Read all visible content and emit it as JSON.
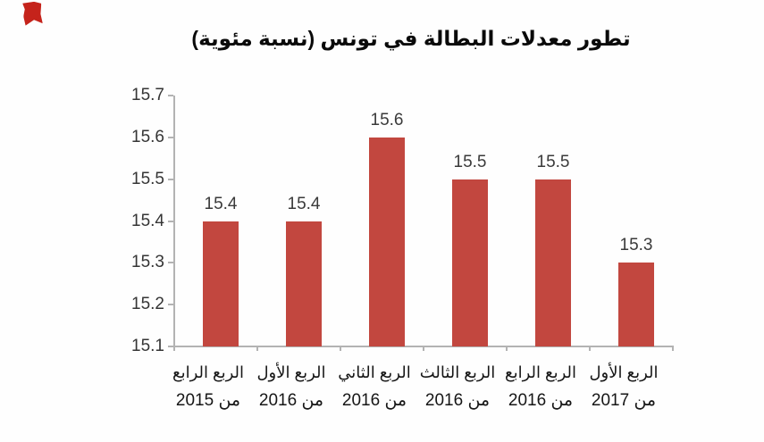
{
  "page": {
    "background": "#fefefe",
    "logo_color": "#c5231b"
  },
  "chart_data": {
    "type": "bar",
    "title": "تطور معدلات البطالة في تونس (نسبة مئوية)",
    "direction": "rtl",
    "grid": false,
    "legend": "none",
    "bar_color": "#c2473f",
    "axis_color": "#b3b3b3",
    "ylim": [
      15.1,
      15.7
    ],
    "y_tick_step": 0.1,
    "y_ticks": [
      "15.7",
      "15.6",
      "15.5",
      "15.4",
      "15.3",
      "15.2",
      "15.1"
    ],
    "categories": [
      {
        "quarter": "الربع الرابع",
        "year": "من 2015"
      },
      {
        "quarter": "الربع الأول",
        "year": "من 2016"
      },
      {
        "quarter": "الربع الثاني",
        "year": "من 2016"
      },
      {
        "quarter": "الربع الثالث",
        "year": "من 2016"
      },
      {
        "quarter": "الربع الرابع",
        "year": "من 2016"
      },
      {
        "quarter": "الربع الأول",
        "year": "من 2017"
      }
    ],
    "values": [
      15.4,
      15.4,
      15.6,
      15.5,
      15.5,
      15.3
    ],
    "value_labels": [
      "15.4",
      "15.4",
      "15.6",
      "15.5",
      "15.5",
      "15.3"
    ]
  }
}
